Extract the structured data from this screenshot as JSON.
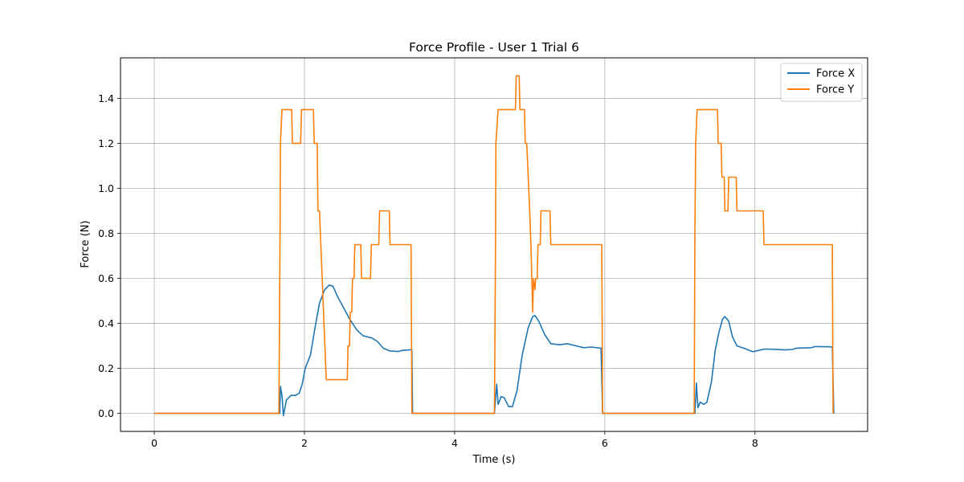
{
  "chart_data": {
    "type": "line",
    "title": "Force Profile - User 1 Trial 6",
    "xlabel": "Time (s)",
    "ylabel": "Force (N)",
    "xlim": [
      -0.45,
      9.5
    ],
    "ylim": [
      -0.08,
      1.58
    ],
    "xticks": [
      0,
      2,
      4,
      6,
      8
    ],
    "yticks": [
      0.0,
      0.2,
      0.4,
      0.6,
      0.8,
      1.0,
      1.2,
      1.4
    ],
    "grid": true,
    "legend": "top-right",
    "series": [
      {
        "name": "Force X",
        "color": "#1f77b4",
        "points": [
          [
            0,
            0
          ],
          [
            1.67,
            0
          ],
          [
            1.68,
            0.12
          ],
          [
            1.7,
            0.08
          ],
          [
            1.72,
            -0.01
          ],
          [
            1.76,
            0.06
          ],
          [
            1.82,
            0.08
          ],
          [
            1.88,
            0.08
          ],
          [
            1.93,
            0.09
          ],
          [
            1.97,
            0.13
          ],
          [
            2.01,
            0.2
          ],
          [
            2.08,
            0.26
          ],
          [
            2.14,
            0.38
          ],
          [
            2.2,
            0.49
          ],
          [
            2.27,
            0.55
          ],
          [
            2.33,
            0.57
          ],
          [
            2.38,
            0.565
          ],
          [
            2.44,
            0.52
          ],
          [
            2.52,
            0.47
          ],
          [
            2.6,
            0.42
          ],
          [
            2.7,
            0.37
          ],
          [
            2.78,
            0.345
          ],
          [
            2.9,
            0.335
          ],
          [
            2.97,
            0.32
          ],
          [
            3.05,
            0.29
          ],
          [
            3.13,
            0.278
          ],
          [
            3.25,
            0.275
          ],
          [
            3.3,
            0.28
          ],
          [
            3.43,
            0.283
          ],
          [
            3.44,
            0
          ],
          [
            4.53,
            0
          ],
          [
            4.56,
            0.13
          ],
          [
            4.58,
            0.04
          ],
          [
            4.62,
            0.075
          ],
          [
            4.66,
            0.07
          ],
          [
            4.72,
            0.03
          ],
          [
            4.77,
            0.03
          ],
          [
            4.83,
            0.1
          ],
          [
            4.9,
            0.26
          ],
          [
            4.98,
            0.38
          ],
          [
            5.04,
            0.43
          ],
          [
            5.07,
            0.435
          ],
          [
            5.12,
            0.41
          ],
          [
            5.2,
            0.35
          ],
          [
            5.28,
            0.31
          ],
          [
            5.4,
            0.305
          ],
          [
            5.5,
            0.31
          ],
          [
            5.62,
            0.3
          ],
          [
            5.72,
            0.292
          ],
          [
            5.82,
            0.295
          ],
          [
            5.95,
            0.29
          ],
          [
            5.97,
            0
          ],
          [
            7.2,
            0
          ],
          [
            7.22,
            0.135
          ],
          [
            7.24,
            0.025
          ],
          [
            7.27,
            0.05
          ],
          [
            7.32,
            0.04
          ],
          [
            7.36,
            0.05
          ],
          [
            7.42,
            0.14
          ],
          [
            7.47,
            0.28
          ],
          [
            7.52,
            0.36
          ],
          [
            7.57,
            0.42
          ],
          [
            7.6,
            0.43
          ],
          [
            7.65,
            0.41
          ],
          [
            7.7,
            0.34
          ],
          [
            7.76,
            0.3
          ],
          [
            7.85,
            0.29
          ],
          [
            7.97,
            0.274
          ],
          [
            8.05,
            0.28
          ],
          [
            8.13,
            0.286
          ],
          [
            8.25,
            0.285
          ],
          [
            8.4,
            0.282
          ],
          [
            8.5,
            0.284
          ],
          [
            8.55,
            0.29
          ],
          [
            8.75,
            0.292
          ],
          [
            8.8,
            0.297
          ],
          [
            9.0,
            0.296
          ],
          [
            9.03,
            0.294
          ],
          [
            9.05,
            0
          ]
        ]
      },
      {
        "name": "Force Y",
        "color": "#ff7f0e",
        "points": [
          [
            0,
            0
          ],
          [
            1.66,
            0
          ],
          [
            1.675,
            0.8
          ],
          [
            1.68,
            1.2
          ],
          [
            1.7,
            1.35
          ],
          [
            1.83,
            1.35
          ],
          [
            1.84,
            1.2
          ],
          [
            1.95,
            1.2
          ],
          [
            1.96,
            1.35
          ],
          [
            2.12,
            1.35
          ],
          [
            2.13,
            1.2
          ],
          [
            2.17,
            1.2
          ],
          [
            2.18,
            0.9
          ],
          [
            2.2,
            0.9
          ],
          [
            2.29,
            0.15
          ],
          [
            2.57,
            0.15
          ],
          [
            2.58,
            0.3
          ],
          [
            2.6,
            0.3
          ],
          [
            2.61,
            0.45
          ],
          [
            2.63,
            0.45
          ],
          [
            2.64,
            0.6
          ],
          [
            2.66,
            0.6
          ],
          [
            2.67,
            0.75
          ],
          [
            2.75,
            0.75
          ],
          [
            2.76,
            0.6
          ],
          [
            2.88,
            0.6
          ],
          [
            2.89,
            0.75
          ],
          [
            2.99,
            0.75
          ],
          [
            3.0,
            0.9
          ],
          [
            3.13,
            0.9
          ],
          [
            3.14,
            0.75
          ],
          [
            3.42,
            0.75
          ],
          [
            3.43,
            0
          ],
          [
            4.53,
            0
          ],
          [
            4.545,
            0.8
          ],
          [
            4.55,
            1.2
          ],
          [
            4.58,
            1.35
          ],
          [
            4.81,
            1.35
          ],
          [
            4.82,
            1.5
          ],
          [
            4.86,
            1.5
          ],
          [
            4.87,
            1.35
          ],
          [
            4.93,
            1.35
          ],
          [
            4.94,
            1.2
          ],
          [
            4.96,
            1.2
          ],
          [
            5.0,
            0.9
          ],
          [
            5.02,
            0.7
          ],
          [
            5.04,
            0.45
          ],
          [
            5.05,
            0.6
          ],
          [
            5.07,
            0.55
          ],
          [
            5.08,
            0.6
          ],
          [
            5.1,
            0.6
          ],
          [
            5.11,
            0.75
          ],
          [
            5.14,
            0.75
          ],
          [
            5.15,
            0.9
          ],
          [
            5.27,
            0.9
          ],
          [
            5.28,
            0.75
          ],
          [
            5.96,
            0.75
          ],
          [
            5.97,
            0
          ],
          [
            7.19,
            0
          ],
          [
            7.2,
            0.8
          ],
          [
            7.21,
            1.2
          ],
          [
            7.23,
            1.35
          ],
          [
            7.5,
            1.35
          ],
          [
            7.51,
            1.2
          ],
          [
            7.55,
            1.2
          ],
          [
            7.56,
            1.05
          ],
          [
            7.59,
            1.05
          ],
          [
            7.6,
            0.9
          ],
          [
            7.64,
            0.9
          ],
          [
            7.65,
            1.05
          ],
          [
            7.75,
            1.05
          ],
          [
            7.76,
            0.9
          ],
          [
            8.11,
            0.9
          ],
          [
            8.12,
            0.75
          ],
          [
            9.03,
            0.75
          ],
          [
            9.04,
            0
          ]
        ]
      }
    ]
  }
}
